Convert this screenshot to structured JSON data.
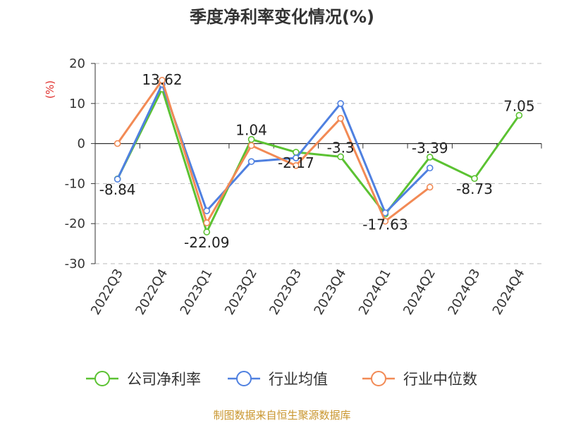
{
  "chart_data": {
    "type": "line",
    "title": "季度净利率变化情况(%)",
    "ylabel": "(%)",
    "ylim": [
      -30,
      20
    ],
    "yticks": [
      20,
      10,
      0,
      -10,
      -20,
      -30
    ],
    "categories": [
      "2022Q3",
      "2022Q4",
      "2023Q1",
      "2023Q2",
      "2023Q3",
      "2023Q4",
      "2024Q1",
      "2024Q2",
      "2024Q3",
      "2024Q4"
    ],
    "grid": true,
    "legend_position": "bottom",
    "series": [
      {
        "name": "公司净利率",
        "color": "#5bc232",
        "values": [
          -8.84,
          13.62,
          -22.09,
          1.04,
          -2.17,
          -3.3,
          -17.63,
          -3.39,
          -8.73,
          7.05
        ],
        "labels": [
          "-8.84",
          "13.62",
          "-22.09",
          "1.04",
          "-2.17",
          "-3.3",
          "-17.63",
          "-3.39",
          "-8.73",
          "7.05"
        ]
      },
      {
        "name": "行业均值",
        "color": "#4f80e0",
        "values": [
          -8.9,
          14.8,
          -16.8,
          -4.5,
          -3.6,
          10.0,
          -17.3,
          -6.1,
          null,
          null
        ]
      },
      {
        "name": "行业中位数",
        "color": "#f28a55",
        "values": [
          0.0,
          15.8,
          -19.8,
          -0.5,
          -5.5,
          6.3,
          -19.4,
          -10.9,
          null,
          null
        ]
      }
    ],
    "source": "制图数据来自恒生聚源数据库"
  }
}
